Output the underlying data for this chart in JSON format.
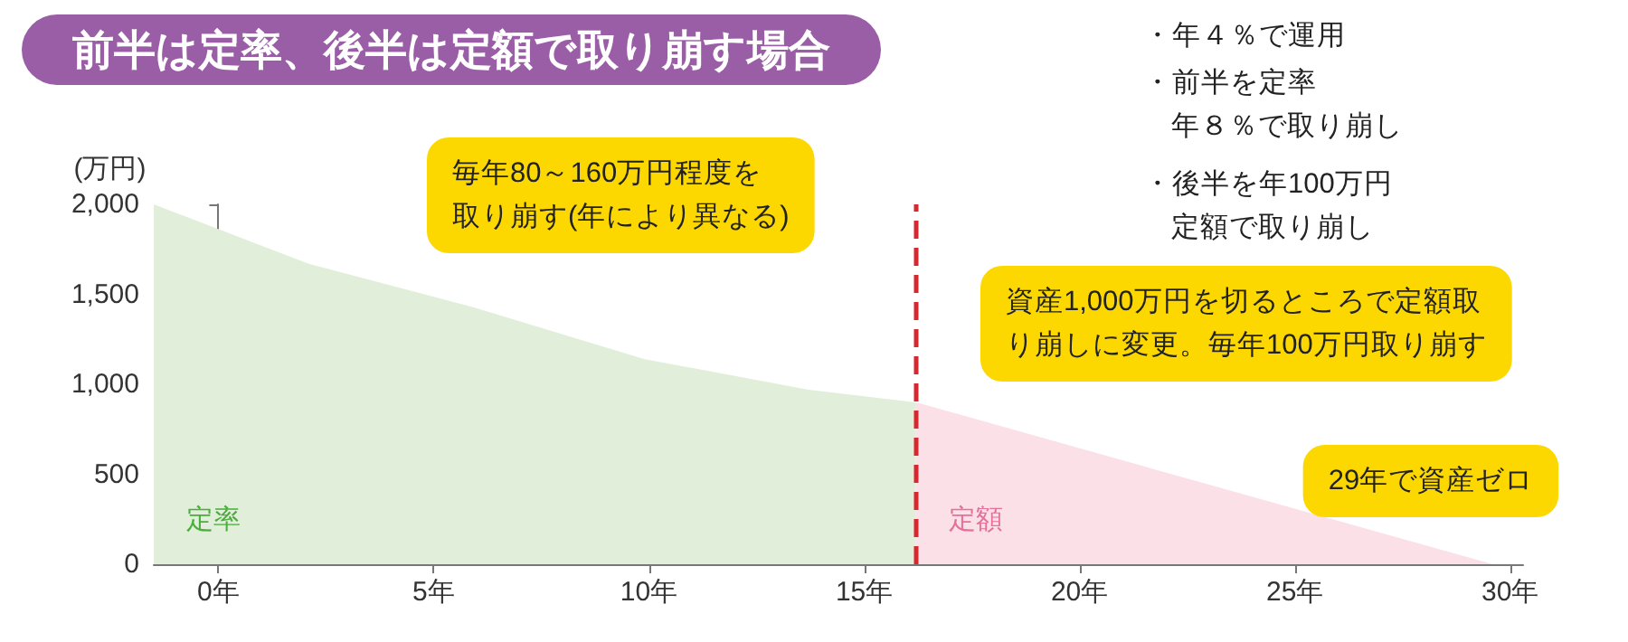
{
  "chart_data": {
    "type": "area",
    "title": "前半は定率、後半は定額で取り崩す場合",
    "ylabel": "(万円)",
    "series": [
      {
        "name": "定率",
        "color": "#e1eed9",
        "x": [
          -1.5,
          2.1,
          5.9,
          9.9,
          13.7,
          16.2
        ],
        "values": [
          2000,
          1670,
          1430,
          1140,
          970,
          900
        ]
      },
      {
        "name": "定額",
        "color": "#fbe0e8",
        "x": [
          16.2,
          29.6
        ],
        "values": [
          900,
          0
        ]
      }
    ],
    "xlim": [
      -1.5,
      30.3
    ],
    "xticks": [
      {
        "value": 0,
        "label": "0年"
      },
      {
        "value": 5,
        "label": "5年"
      },
      {
        "value": 10,
        "label": "10年"
      },
      {
        "value": 15,
        "label": "15年"
      },
      {
        "value": 20,
        "label": "20年"
      },
      {
        "value": 25,
        "label": "25年"
      },
      {
        "value": 30,
        "label": "30年"
      }
    ],
    "ylim": [
      0,
      2000
    ],
    "yticks": [
      0,
      500,
      {
        "value": 1000,
        "label": "1,000"
      },
      {
        "value": 1500,
        "label": "1,500"
      },
      {
        "value": 2000,
        "label": "2,000"
      }
    ],
    "ref_lines": [
      {
        "axis": "x",
        "value": 16.2,
        "color": "#d7282f",
        "line_style": "dashed"
      }
    ],
    "annotations": [
      "・年４％で運用",
      "・前半を定率年８％で取り崩し",
      "・後半を年100万円定額で取り崩し",
      "毎年80～160万円程度を取り崩す(年により異なる)",
      "資産1,000万円を切るところで定額取り崩しに変更。毎年100万円取り崩す",
      {
        "text": "29年で資産ゼロ",
        "x": 29.6,
        "y": 0
      }
    ],
    "legend": false
  }
}
